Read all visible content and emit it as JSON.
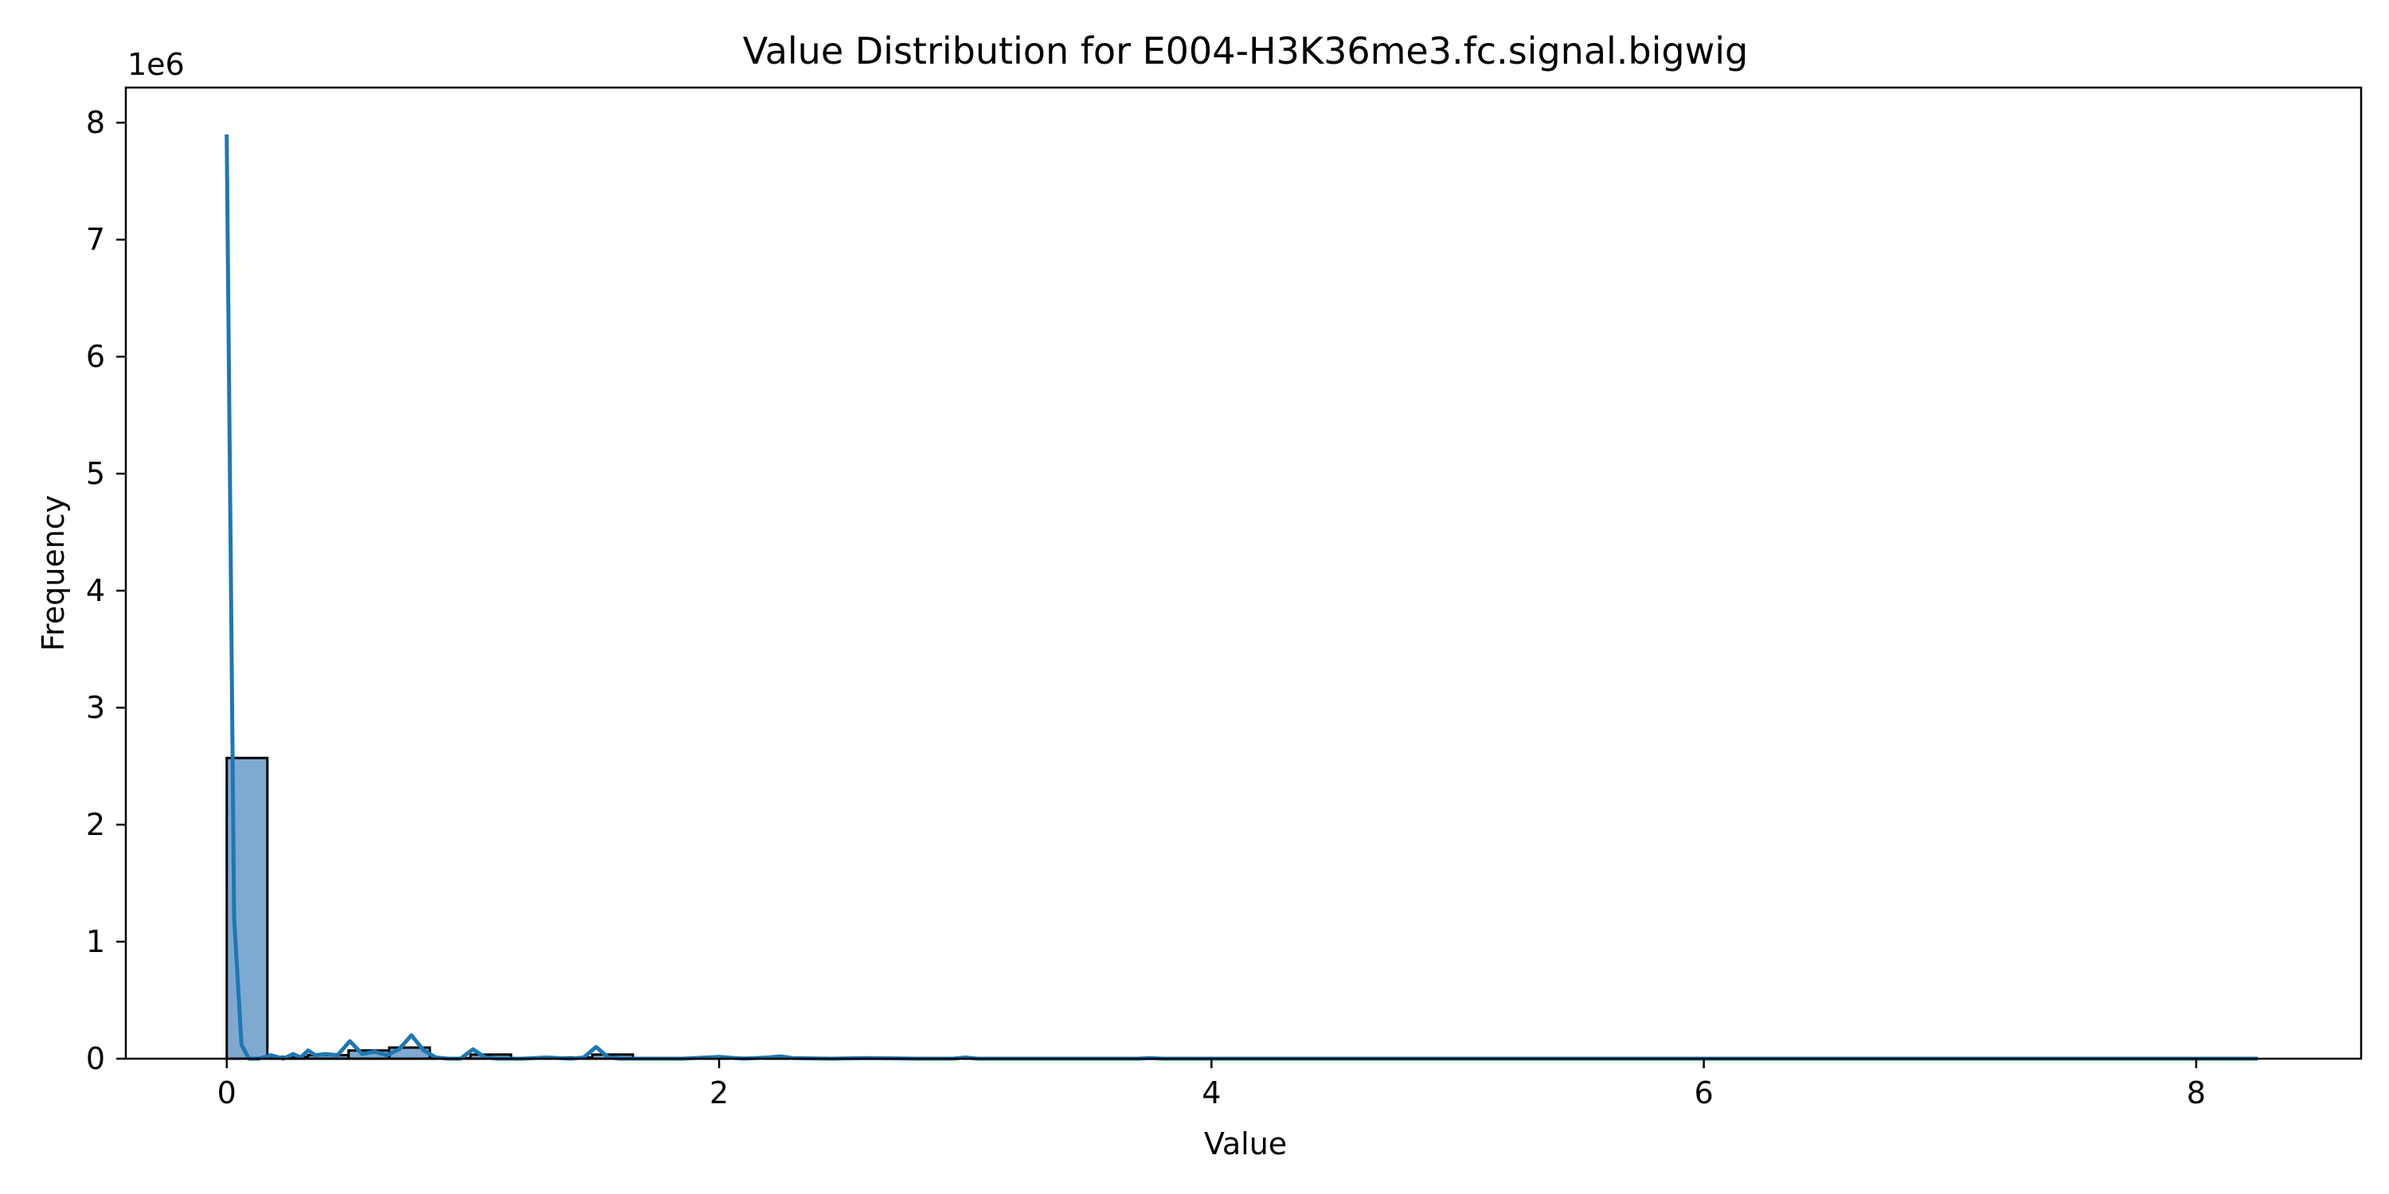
{
  "chart_data": {
    "type": "bar",
    "title": "Value Distribution for E004-H3K36me3.fc.signal.bigwig",
    "xlabel": "Value",
    "ylabel": "Frequency",
    "y_offset_label": "1e6",
    "xlim": [
      -0.41,
      8.67
    ],
    "ylim": [
      0,
      8.3
    ],
    "x_ticks": [
      0,
      2,
      4,
      6,
      8
    ],
    "x_tick_labels": [
      "0",
      "2",
      "4",
      "6",
      "8"
    ],
    "y_ticks": [
      0,
      1,
      2,
      3,
      4,
      5,
      6,
      7,
      8
    ],
    "y_tick_labels": [
      "0",
      "1",
      "2",
      "3",
      "4",
      "5",
      "6",
      "7",
      "8"
    ],
    "y_unit_multiplier": 1000000,
    "bar_color": "#7fa9cf",
    "edge_color": "#000000",
    "kde_color": "#1f77b4",
    "grid": false,
    "bins": [
      {
        "x0": 0.0,
        "x1": 0.165,
        "count": 2.57
      },
      {
        "x0": 0.165,
        "x1": 0.33,
        "count": 0.015
      },
      {
        "x0": 0.33,
        "x1": 0.495,
        "count": 0.03
      },
      {
        "x0": 0.495,
        "x1": 0.66,
        "count": 0.07
      },
      {
        "x0": 0.66,
        "x1": 0.825,
        "count": 0.095
      },
      {
        "x0": 0.825,
        "x1": 0.99,
        "count": 0.005
      },
      {
        "x0": 0.99,
        "x1": 1.155,
        "count": 0.035
      },
      {
        "x0": 1.155,
        "x1": 1.32,
        "count": 0.005
      },
      {
        "x0": 1.32,
        "x1": 1.485,
        "count": 0.01
      },
      {
        "x0": 1.485,
        "x1": 1.65,
        "count": 0.035
      },
      {
        "x0": 1.65,
        "x1": 1.815,
        "count": 0.003
      },
      {
        "x0": 1.815,
        "x1": 1.98,
        "count": 0.003
      },
      {
        "x0": 1.98,
        "x1": 2.145,
        "count": 0.008
      },
      {
        "x0": 2.145,
        "x1": 2.31,
        "count": 0.005
      },
      {
        "x0": 2.31,
        "x1": 2.475,
        "count": 0.002
      },
      {
        "x0": 2.475,
        "x1": 2.64,
        "count": 0.002
      },
      {
        "x0": 2.64,
        "x1": 2.805,
        "count": 0.001
      },
      {
        "x0": 2.805,
        "x1": 2.97,
        "count": 0.001
      },
      {
        "x0": 2.97,
        "x1": 3.135,
        "count": 0.002
      },
      {
        "x0": 3.135,
        "x1": 3.3,
        "count": 0.001
      }
    ],
    "kde": {
      "x": [
        0.0,
        0.03,
        0.06,
        0.09,
        0.13,
        0.18,
        0.23,
        0.27,
        0.3,
        0.33,
        0.36,
        0.4,
        0.45,
        0.5,
        0.55,
        0.6,
        0.65,
        0.7,
        0.75,
        0.8,
        0.85,
        0.9,
        0.95,
        1.0,
        1.05,
        1.1,
        1.2,
        1.3,
        1.4,
        1.45,
        1.5,
        1.55,
        1.6,
        1.7,
        1.85,
        2.0,
        2.1,
        2.2,
        2.25,
        2.3,
        2.45,
        2.6,
        2.8,
        2.95,
        3.0,
        3.05,
        3.3,
        3.7,
        3.75,
        3.8,
        4.5,
        5.5,
        6.5,
        7.5,
        8.25
      ],
      "y": [
        7.9,
        1.2,
        0.12,
        0.0,
        0.0,
        0.03,
        0.0,
        0.04,
        0.01,
        0.07,
        0.03,
        0.04,
        0.03,
        0.15,
        0.04,
        0.06,
        0.03,
        0.08,
        0.2,
        0.07,
        0.01,
        0.0,
        0.0,
        0.08,
        0.01,
        0.0,
        0.0,
        0.01,
        0.0,
        0.01,
        0.1,
        0.01,
        0.0,
        0.0,
        0.0,
        0.015,
        0.0,
        0.01,
        0.02,
        0.005,
        0.0,
        0.005,
        0.0,
        0.0,
        0.01,
        0.0,
        0.0,
        0.0,
        0.005,
        0.0,
        0.0,
        0.0,
        0.0,
        0.0,
        0.0
      ]
    }
  }
}
